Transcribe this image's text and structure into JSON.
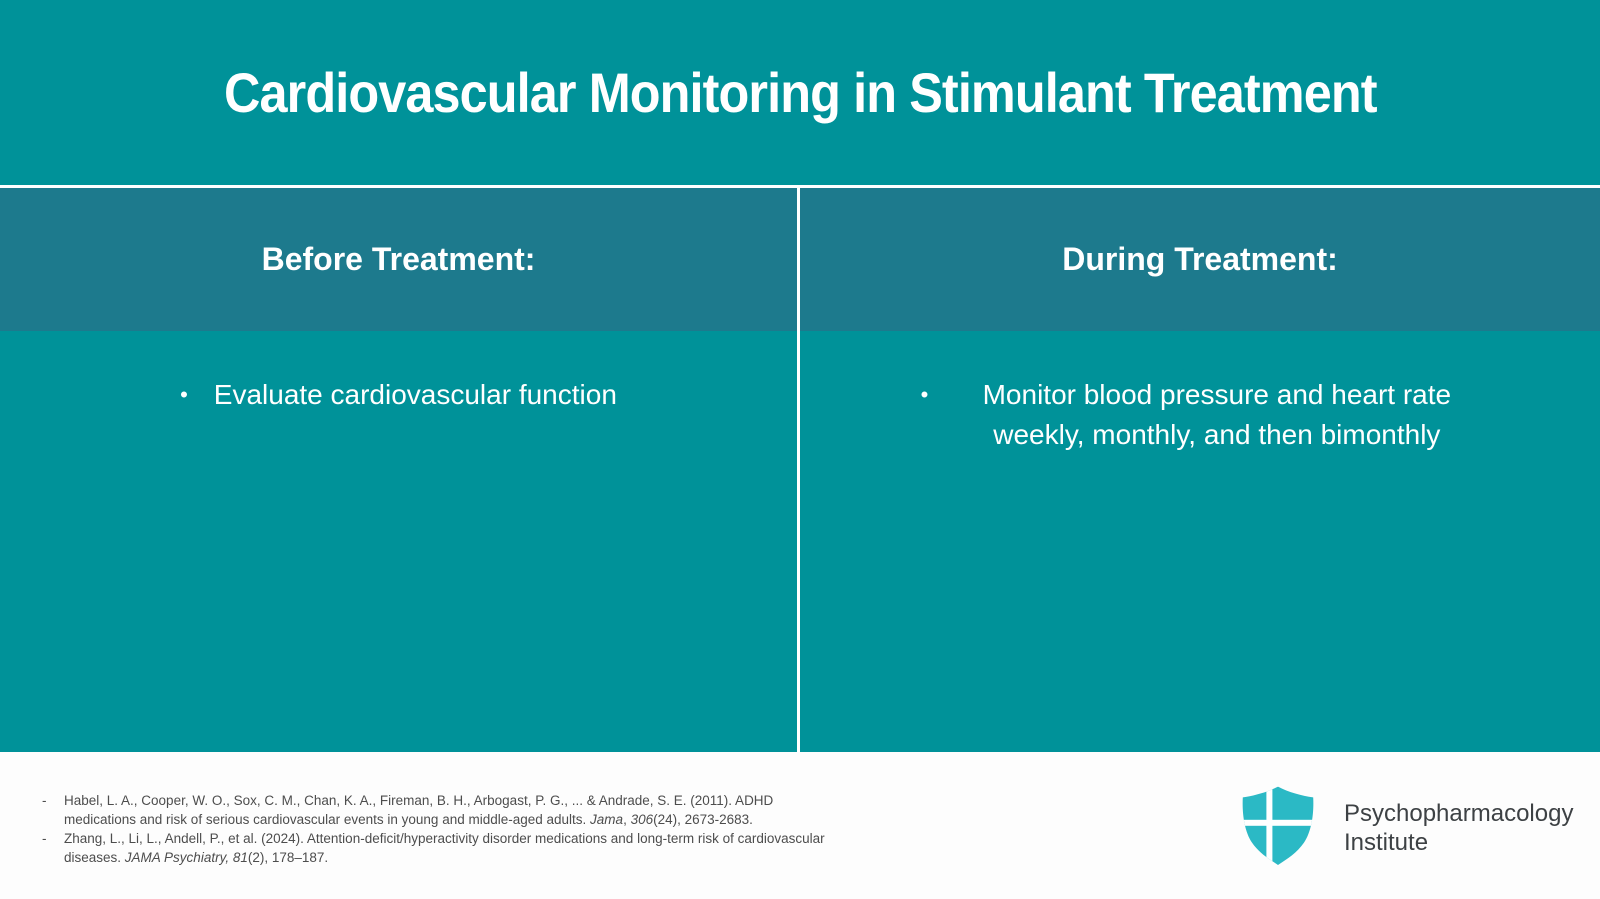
{
  "title": "Cardiovascular Monitoring in Stimulant Treatment",
  "bullet_glyph": "•",
  "columns": [
    {
      "header": "Before Treatment:",
      "bullets": [
        "Evaluate cardiovascular function"
      ]
    },
    {
      "header": "During Treatment:",
      "bullets": [
        "Monitor blood pressure and heart rate weekly, monthly, and then bimonthly"
      ]
    }
  ],
  "footer": {
    "citations": [
      {
        "marker": "-",
        "segments": [
          {
            "text": "Habel, L. A., Cooper, W. O., Sox, C. M., Chan, K. A., Fireman, B. H., Arbogast, P. G., ... & Andrade, S. E. (2011). ADHD medications and risk of serious cardiovascular events in young and middle-aged adults. ",
            "italic": false
          },
          {
            "text": "Jama",
            "italic": true
          },
          {
            "text": ", ",
            "italic": false
          },
          {
            "text": "306",
            "italic": true
          },
          {
            "text": "(24), 2673-2683.",
            "italic": false
          }
        ]
      },
      {
        "marker": "-",
        "segments": [
          {
            "text": "Zhang, L., Li, L., Andell, P., et al. (2024). Attention-deficit/hyperactivity disorder medications and long-term risk of cardiovascular diseases. ",
            "italic": false
          },
          {
            "text": "JAMA Psychiatry, 81",
            "italic": true
          },
          {
            "text": "(2), 178–187.",
            "italic": false
          }
        ]
      }
    ],
    "logo": {
      "line1": "Psychopharmacology",
      "line2": "Institute"
    }
  },
  "colors": {
    "background": "#009299",
    "header_band": "#1d7a8d",
    "divider_line": "#ffffff",
    "footer_background": "#fdfdfd",
    "citation_text": "#4d4d4d",
    "logo_shield": "#2bb9c5",
    "logo_text": "#3d4144"
  }
}
